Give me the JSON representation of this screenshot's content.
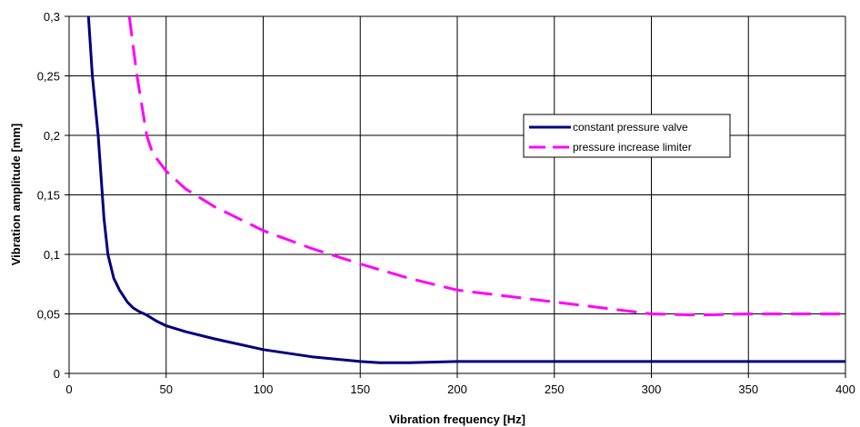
{
  "chart_data": {
    "type": "line",
    "title": "",
    "xlabel": "Vibration frequency [Hz]",
    "ylabel": "Vibration amplitude [mm]",
    "xlim": [
      0,
      400
    ],
    "ylim": [
      0,
      0.3
    ],
    "x_ticks": [
      0,
      50,
      100,
      150,
      200,
      250,
      300,
      350,
      400
    ],
    "y_ticks": [
      0,
      0.05,
      0.1,
      0.15,
      0.2,
      0.25,
      0.3
    ],
    "x_tick_labels": [
      "0",
      "50",
      "100",
      "150",
      "200",
      "250",
      "300",
      "350",
      "400"
    ],
    "y_tick_labels": [
      "0",
      "0,05",
      "0,1",
      "0,15",
      "0,2",
      "0,25",
      "0,3"
    ],
    "grid": true,
    "legend_position": "upper-right",
    "series": [
      {
        "name": "constant pressure valve",
        "color": "#000080",
        "style": "solid",
        "x": [
          10,
          12,
          15,
          18,
          20,
          23,
          26,
          30,
          33,
          36,
          40,
          45,
          50,
          60,
          75,
          100,
          125,
          150,
          160,
          175,
          200,
          250,
          300,
          350,
          400
        ],
        "y": [
          0.3,
          0.25,
          0.2,
          0.13,
          0.1,
          0.08,
          0.07,
          0.06,
          0.055,
          0.052,
          0.049,
          0.044,
          0.04,
          0.035,
          0.029,
          0.02,
          0.014,
          0.01,
          0.009,
          0.009,
          0.01,
          0.01,
          0.01,
          0.01,
          0.01
        ]
      },
      {
        "name": "pressure increase limiter",
        "color": "#ff00ff",
        "style": "dashed",
        "x": [
          31,
          35,
          40,
          43,
          50,
          60,
          75,
          100,
          125,
          150,
          175,
          200,
          250,
          300,
          325,
          350,
          400
        ],
        "y": [
          0.3,
          0.25,
          0.2,
          0.185,
          0.17,
          0.155,
          0.14,
          0.12,
          0.105,
          0.092,
          0.08,
          0.07,
          0.06,
          0.05,
          0.049,
          0.05,
          0.05
        ]
      }
    ]
  }
}
